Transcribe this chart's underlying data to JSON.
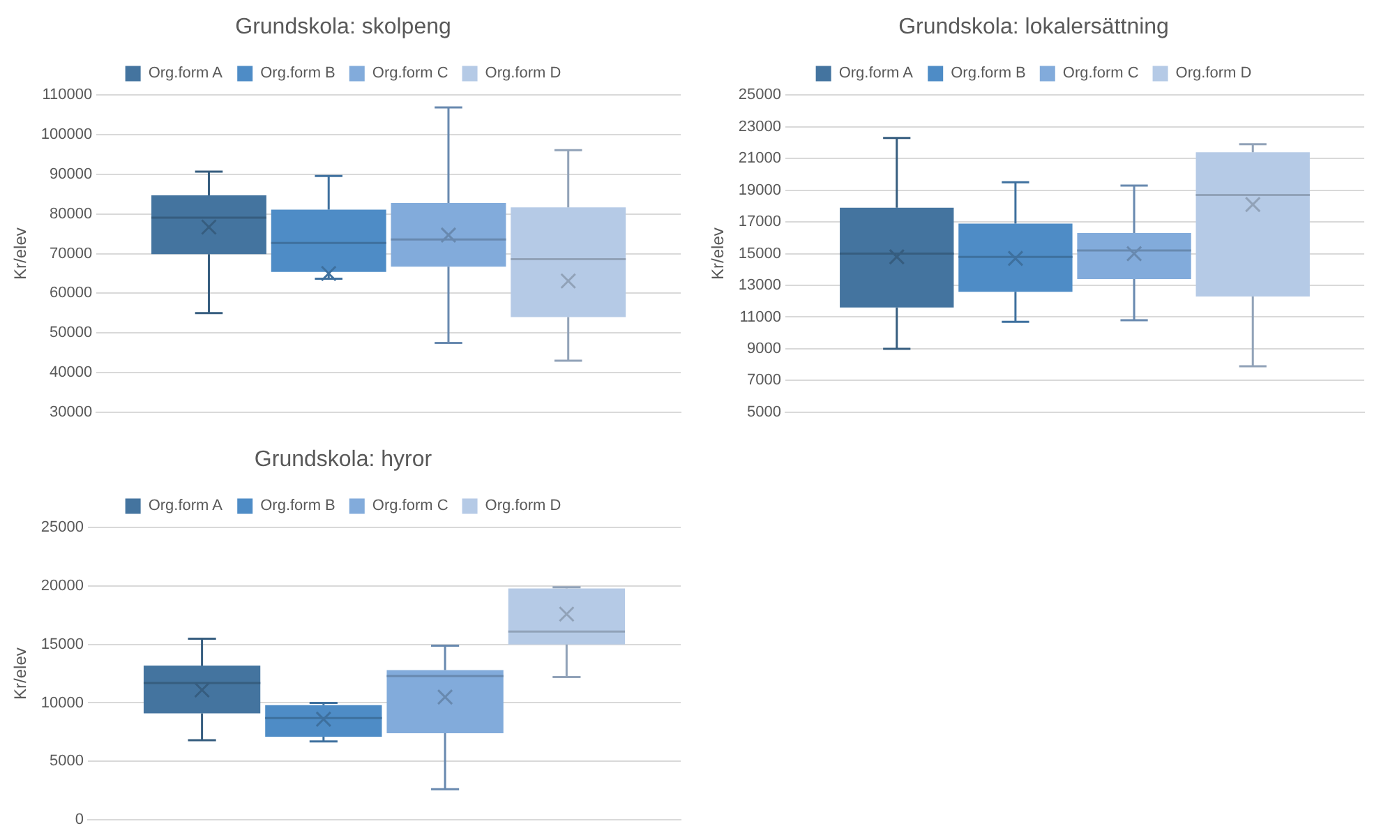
{
  "chart_data": [
    {
      "type": "box",
      "title": "Grundskola: skolpeng",
      "ylabel": "Kr/elev",
      "categories": [
        null
      ],
      "ylim": [
        30000,
        110000
      ],
      "yticks": [
        30000,
        40000,
        50000,
        60000,
        70000,
        80000,
        90000,
        100000,
        110000
      ],
      "grid": "y",
      "legend": "top",
      "tick_labels": "y",
      "series": [
        {
          "name": "Org.form A",
          "color": "#44749f",
          "boxes": [
            {
              "low": 55000,
              "q1": 69900,
              "median": 79100,
              "q3": 84700,
              "high": 90700,
              "mean": 76700
            }
          ]
        },
        {
          "name": "Org.form B",
          "color": "#4e8cc6",
          "boxes": [
            {
              "low": 63700,
              "q1": 65400,
              "median": 72700,
              "q3": 81100,
              "high": 89600,
              "mean": 65000
            }
          ]
        },
        {
          "name": "Org.form C",
          "color": "#82abdb",
          "boxes": [
            {
              "low": 47500,
              "q1": 66700,
              "median": 73600,
              "q3": 82800,
              "high": 106900,
              "mean": 74700
            }
          ]
        },
        {
          "name": "Org.form D",
          "color": "#b5cae6",
          "boxes": [
            {
              "low": 43000,
              "q1": 54000,
              "median": 68600,
              "q3": 81700,
              "high": 96100,
              "mean": 63100
            }
          ]
        }
      ]
    },
    {
      "type": "box",
      "title": "Grundskola: lokalersättning",
      "ylabel": "Kr/elev",
      "categories": [
        null
      ],
      "ylim": [
        5000,
        25000
      ],
      "yticks": [
        5000,
        7000,
        9000,
        11000,
        13000,
        15000,
        17000,
        19000,
        21000,
        23000,
        25000
      ],
      "grid": "y",
      "legend": "top",
      "tick_labels": "y",
      "series": [
        {
          "name": "Org.form A",
          "color": "#44749f",
          "boxes": [
            {
              "low": 9000,
              "q1": 11600,
              "median": 15000,
              "q3": 17900,
              "high": 22300,
              "mean": 14800
            }
          ]
        },
        {
          "name": "Org.form B",
          "color": "#4e8cc6",
          "boxes": [
            {
              "low": 10700,
              "q1": 12600,
              "median": 14800,
              "q3": 16900,
              "high": 19500,
              "mean": 14700
            }
          ]
        },
        {
          "name": "Org.form C",
          "color": "#82abdb",
          "boxes": [
            {
              "low": 10800,
              "q1": 13400,
              "median": 15200,
              "q3": 16300,
              "high": 19300,
              "mean": 15000
            }
          ]
        },
        {
          "name": "Org.form D",
          "color": "#b5cae6",
          "boxes": [
            {
              "low": 7900,
              "q1": 12300,
              "median": 18700,
              "q3": 21400,
              "high": 21900,
              "mean": 18100
            }
          ]
        }
      ]
    },
    {
      "type": "box",
      "title": "Grundskola: hyror",
      "ylabel": "Kr/elev",
      "categories": [
        null
      ],
      "ylim": [
        0,
        25000
      ],
      "yticks": [
        0,
        5000,
        10000,
        15000,
        20000,
        25000
      ],
      "grid": "y",
      "legend": "top",
      "tick_labels": "y",
      "series": [
        {
          "name": "Org.form A",
          "color": "#44749f",
          "boxes": [
            {
              "low": 6800,
              "q1": 9100,
              "median": 11700,
              "q3": 13200,
              "high": 15500,
              "mean": 11100
            }
          ]
        },
        {
          "name": "Org.form B",
          "color": "#4e8cc6",
          "boxes": [
            {
              "low": 6700,
              "q1": 7100,
              "median": 8700,
              "q3": 9800,
              "high": 10000,
              "mean": 8600
            }
          ]
        },
        {
          "name": "Org.form C",
          "color": "#82abdb",
          "boxes": [
            {
              "low": 2600,
              "q1": 7400,
              "median": 12300,
              "q3": 12800,
              "high": 14900,
              "mean": 10500
            }
          ]
        },
        {
          "name": "Org.form D",
          "color": "#b5cae6",
          "boxes": [
            {
              "low": 12200,
              "q1": 15000,
              "median": 16100,
              "q3": 19800,
              "high": 19900,
              "mean": 17600
            }
          ]
        }
      ]
    }
  ]
}
